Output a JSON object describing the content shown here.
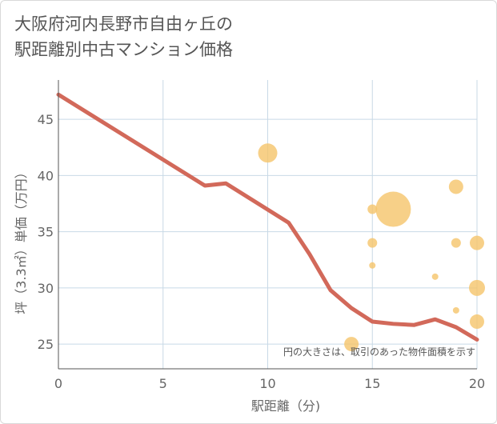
{
  "header": {
    "title_line1": "大阪府河内長野市自由ヶ丘の",
    "title_line2": "駅距離別中古マンション価格"
  },
  "chart_data": {
    "type": "scatter",
    "title": "大阪府河内長野市自由ヶ丘の駅距離別中古マンション価格",
    "xlabel": "駅距離（分)",
    "ylabel": "坪（3.3㎡）単価（万円）",
    "xlim": [
      0,
      20
    ],
    "ylim": [
      22.8,
      48.5
    ],
    "xticks": [
      0,
      5,
      10,
      15,
      20
    ],
    "yticks": [
      25,
      30,
      35,
      40,
      45
    ],
    "grid": true,
    "note": "円の大きさは、取引のあった物件面積を示す",
    "colors": {
      "line": "#d2695a",
      "bubble": "#f5c46a",
      "grid": "#c8d9e6",
      "axis": "#555555"
    },
    "series": [
      {
        "name": "trend",
        "kind": "line",
        "x": [
          0,
          7,
          8,
          11,
          12,
          13,
          14,
          15,
          16,
          17,
          18,
          19,
          20
        ],
        "y": [
          47.2,
          39.1,
          39.3,
          35.8,
          33.0,
          29.8,
          28.2,
          27.0,
          26.8,
          26.7,
          27.2,
          26.5,
          25.4
        ]
      },
      {
        "name": "transactions",
        "kind": "bubble",
        "points": [
          {
            "x": 10,
            "y": 42.0,
            "size": 12
          },
          {
            "x": 16,
            "y": 37.0,
            "size": 22
          },
          {
            "x": 15,
            "y": 37.0,
            "size": 6
          },
          {
            "x": 15,
            "y": 34.0,
            "size": 6
          },
          {
            "x": 15,
            "y": 32.0,
            "size": 4
          },
          {
            "x": 14,
            "y": 25.0,
            "size": 9
          },
          {
            "x": 18,
            "y": 31.0,
            "size": 4
          },
          {
            "x": 19,
            "y": 39.0,
            "size": 9
          },
          {
            "x": 19,
            "y": 34.0,
            "size": 6
          },
          {
            "x": 19,
            "y": 28.0,
            "size": 4
          },
          {
            "x": 20,
            "y": 34.0,
            "size": 9
          },
          {
            "x": 20,
            "y": 30.0,
            "size": 10
          },
          {
            "x": 20,
            "y": 27.0,
            "size": 9
          }
        ]
      }
    ]
  }
}
